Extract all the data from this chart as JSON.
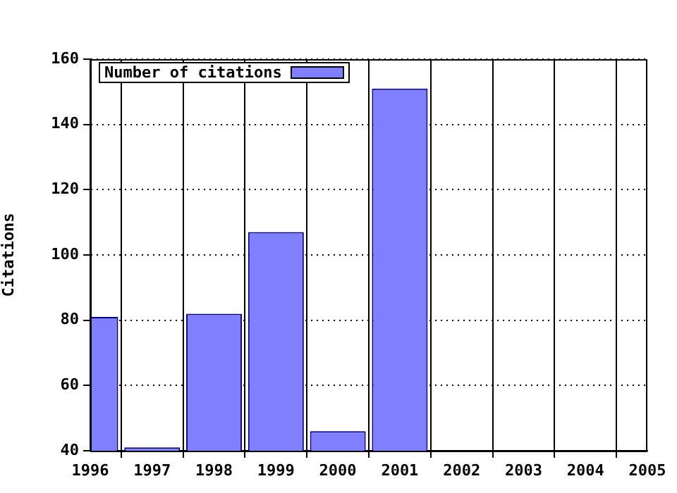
{
  "chart_data": {
    "type": "bar",
    "ylabel": "Citations",
    "x": [
      1996,
      1997,
      1998,
      1999,
      2000,
      2001
    ],
    "series": [
      {
        "name": "Number of citations",
        "color": "#8080ff",
        "values": [
          81,
          41,
          82,
          107,
          46,
          151
        ]
      }
    ],
    "xlim": [
      1996,
      2005
    ],
    "xticks": [
      1996,
      1997,
      1998,
      1999,
      2000,
      2001,
      2002,
      2003,
      2004,
      2005
    ],
    "ylim": [
      40,
      160
    ],
    "yticks": [
      40,
      60,
      80,
      100,
      120,
      140,
      160
    ],
    "grid": true,
    "legend": "top left"
  }
}
